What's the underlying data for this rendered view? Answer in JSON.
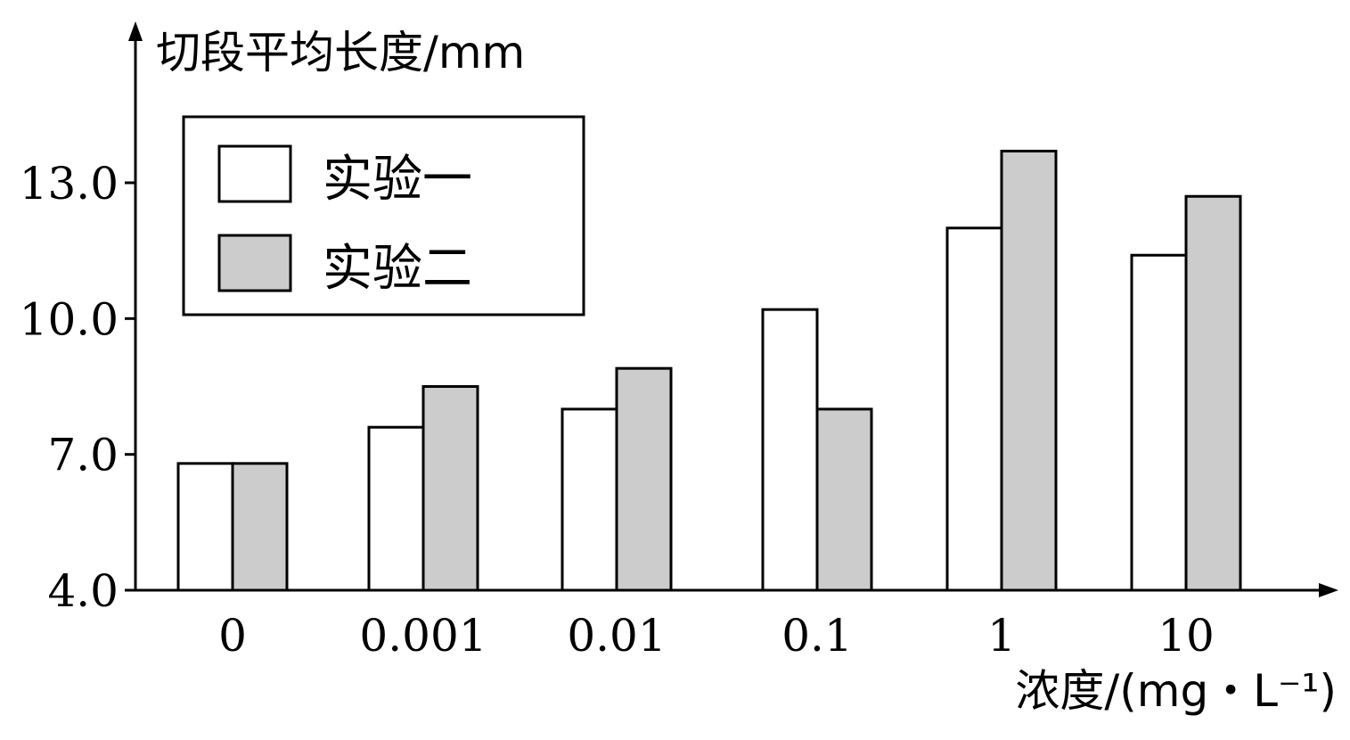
{
  "chart_data": {
    "type": "bar",
    "title": "",
    "ylabel": "切段平均长度/mm",
    "xlabel": "浓度/(mg・L⁻¹)",
    "categories": [
      "0",
      "0.001",
      "0.01",
      "0.1",
      "1",
      "10"
    ],
    "y_ticks": [
      "4.0",
      "7.0",
      "10.0",
      "13.0"
    ],
    "ylim": [
      4.0,
      16.0
    ],
    "grid": false,
    "legend_position": "top-left",
    "series": [
      {
        "name": "实验一",
        "color": "#ffffff",
        "values": [
          6.8,
          7.6,
          8.0,
          10.2,
          12.0,
          11.4
        ]
      },
      {
        "name": "实验二",
        "color": "#cccccc",
        "values": [
          6.8,
          8.5,
          8.9,
          8.0,
          13.7,
          12.7
        ]
      }
    ]
  }
}
